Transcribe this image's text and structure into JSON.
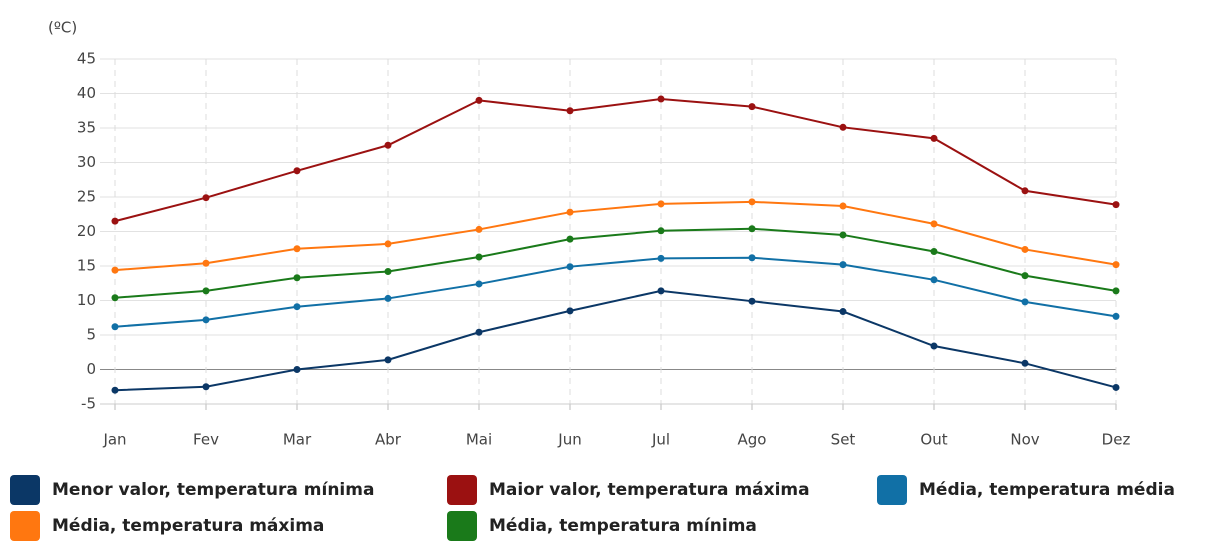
{
  "chart_data": {
    "type": "line",
    "y_label": "(ºC)",
    "categories": [
      "Jan",
      "Fev",
      "Mar",
      "Abr",
      "Mai",
      "Jun",
      "Jul",
      "Ago",
      "Set",
      "Out",
      "Nov",
      "Dez"
    ],
    "series": [
      {
        "name": "Menor valor, temperatura mínima",
        "color": "#0b3766",
        "values": [
          -3.0,
          -2.5,
          0,
          1.4,
          5.4,
          8.5,
          11.4,
          9.9,
          8.4,
          3.4,
          0.9,
          -2.6
        ]
      },
      {
        "name": "Maior valor, temperatura máxima",
        "color": "#9b1111",
        "values": [
          21.5,
          24.9,
          28.8,
          32.5,
          39.0,
          37.5,
          39.2,
          38.1,
          35.1,
          33.5,
          25.9,
          23.9
        ]
      },
      {
        "name": "Média, temperatura média",
        "color": "#1170a6",
        "values": [
          6.2,
          7.2,
          9.1,
          10.3,
          12.4,
          14.9,
          16.1,
          16.2,
          15.2,
          13.0,
          9.8,
          7.7
        ]
      },
      {
        "name": "Média, temperatura máxima",
        "color": "#ff7710",
        "values": [
          14.4,
          15.4,
          17.5,
          18.2,
          20.3,
          22.8,
          24.0,
          24.3,
          23.7,
          21.1,
          17.4,
          15.2
        ]
      },
      {
        "name": "Média, temperatura mínima",
        "color": "#1a7a1a",
        "values": [
          10.4,
          11.4,
          13.3,
          14.2,
          16.3,
          18.9,
          20.1,
          20.4,
          19.5,
          17.1,
          13.6,
          11.4
        ]
      }
    ],
    "ylim": [
      -5,
      45
    ],
    "yticks": [
      -5,
      0,
      5,
      10,
      15,
      20,
      25,
      30,
      35,
      40,
      45
    ],
    "grid": true
  }
}
